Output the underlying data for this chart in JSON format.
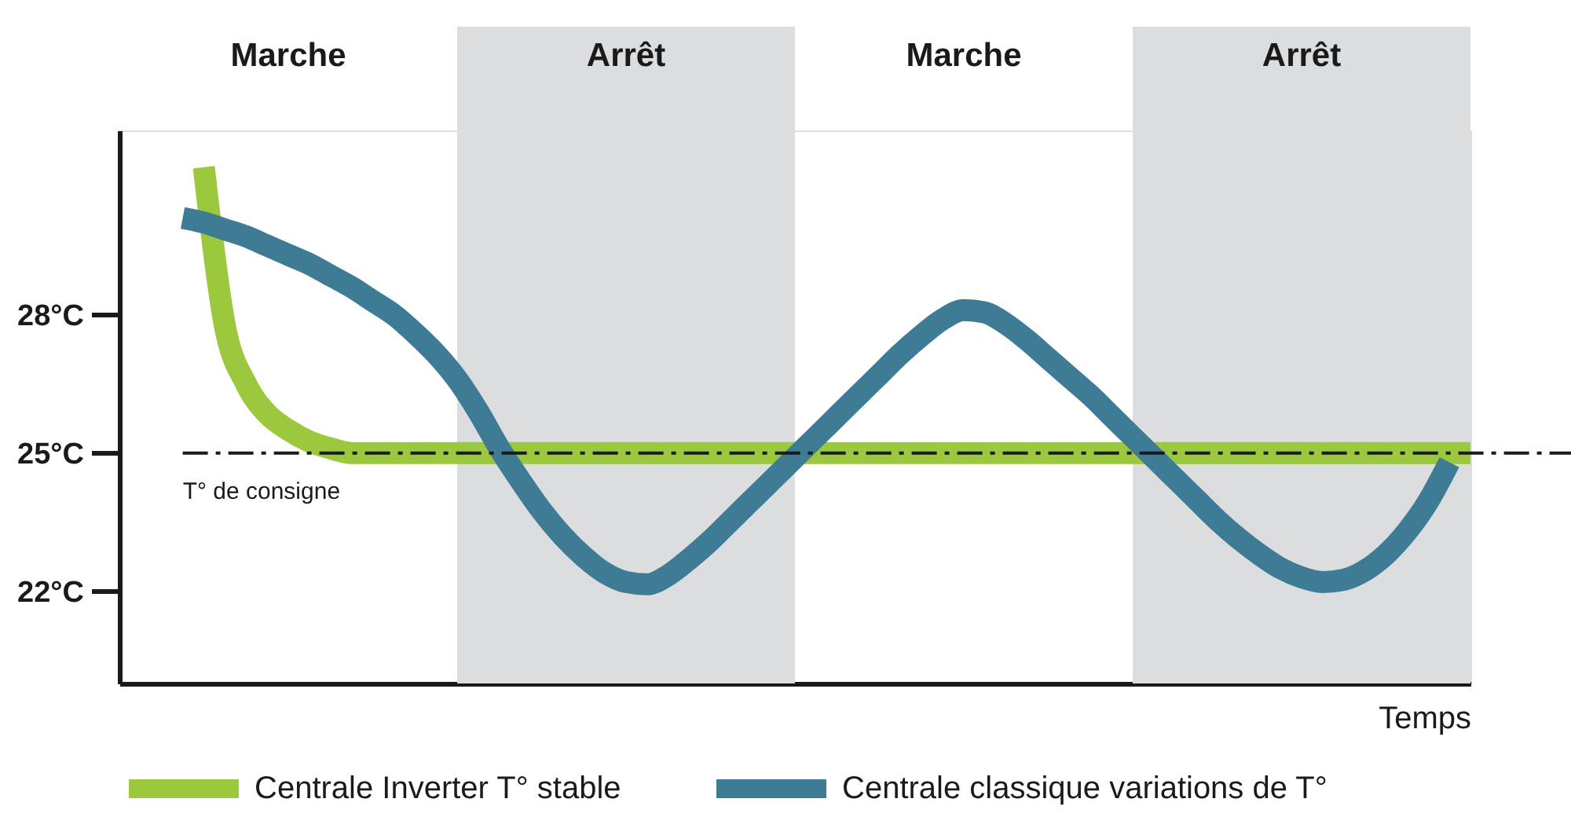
{
  "chart_data": {
    "type": "line",
    "xlabel": "Temps",
    "categories": [
      null,
      null,
      null,
      null,
      null,
      null,
      null,
      null,
      null,
      null,
      null,
      null,
      null,
      null,
      null,
      null,
      null,
      null,
      null,
      null,
      null,
      null,
      null,
      null,
      null,
      null,
      null,
      null,
      null,
      null,
      null,
      null,
      null,
      null,
      null,
      null,
      null,
      null,
      null,
      null,
      null,
      null,
      null,
      null,
      null,
      null,
      null,
      null,
      null,
      null,
      null,
      null,
      null,
      null,
      null,
      null,
      null,
      null,
      null,
      null,
      null,
      null,
      null,
      null,
      null
    ],
    "series": [
      {
        "name": "Centrale Inverter T° stable",
        "color": "#9bc83c",
        "values": [
          null,
          null,
          null,
          null,
          31.2,
          27.75,
          26.5,
          25.85,
          25.5,
          25.25,
          25.1,
          25,
          25,
          25,
          25,
          25,
          25,
          25,
          25,
          25,
          25,
          25,
          25,
          25,
          25,
          25,
          25,
          25,
          25,
          25,
          25,
          25,
          25,
          25,
          25,
          25,
          25,
          25,
          25,
          25,
          25,
          25,
          25,
          25,
          25,
          25,
          25,
          25,
          25,
          25,
          25,
          25,
          25,
          25,
          25,
          25,
          25,
          25,
          25,
          25,
          25,
          25,
          25,
          25,
          25
        ]
      },
      {
        "name": "Centrale classique variations de T°",
        "color": "#3e7c96",
        "values": [
          null,
          null,
          null,
          30.1,
          30.0,
          29.85,
          29.7,
          29.5,
          29.3,
          29.1,
          28.85,
          28.6,
          28.3,
          28.0,
          27.6,
          27.15,
          26.6,
          25.9,
          25.1,
          24.4,
          23.75,
          23.2,
          22.75,
          22.4,
          22.2,
          22.15,
          22.35,
          22.7,
          23.1,
          23.55,
          24.0,
          24.45,
          24.9,
          25.35,
          25.8,
          26.25,
          26.7,
          27.15,
          27.55,
          27.9,
          28.1,
          28.05,
          27.8,
          27.45,
          27.05,
          26.65,
          26.25,
          25.8,
          25.35,
          24.9,
          24.45,
          24.0,
          23.55,
          23.15,
          22.8,
          22.5,
          22.3,
          22.2,
          22.25,
          22.45,
          22.8,
          23.3,
          23.95,
          24.8,
          null
        ]
      }
    ],
    "ylim": [
      20,
      32
    ],
    "yticks": [
      {
        "value": 22,
        "label": "22°C"
      },
      {
        "value": 25,
        "label": "25°C"
      },
      {
        "value": 28,
        "label": "28°C"
      }
    ],
    "tick_labels": "y",
    "grid": false,
    "legend": "bottom",
    "ref_lines": [
      {
        "axis": "y",
        "value": 25,
        "label": "T° de consigne",
        "color": "#1a1a1a",
        "line_style": "dashed"
      }
    ],
    "annotations": [
      "Marche",
      "Arrêt",
      "Marche",
      "Arrêt"
    ]
  }
}
